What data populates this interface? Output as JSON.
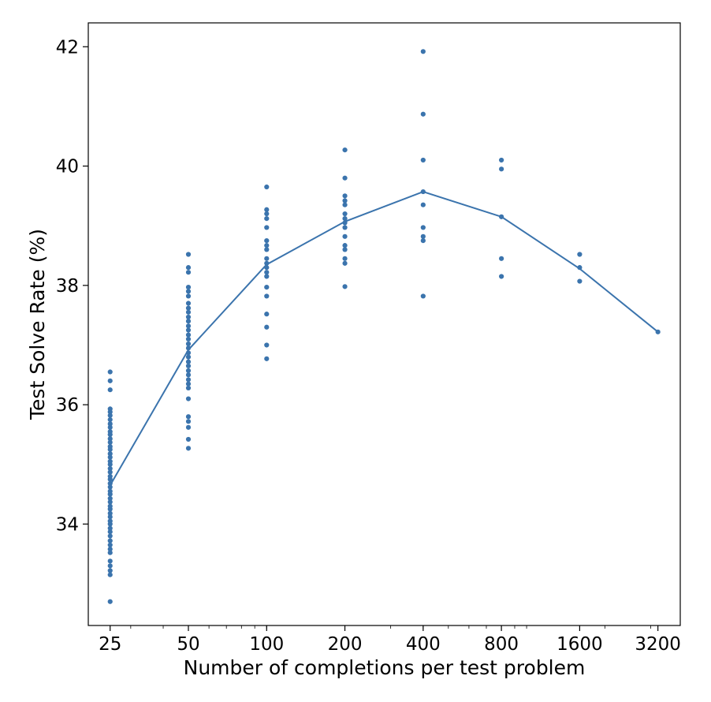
{
  "chart_data": {
    "type": "scatter",
    "title": "",
    "xlabel": "Number of completions per test problem",
    "ylabel": "Test Solve Rate (%)",
    "x_scale": "log2",
    "xlim": [
      20.6,
      3900
    ],
    "ylim": [
      32.3,
      42.4
    ],
    "x_ticks": [
      25,
      50,
      100,
      200,
      400,
      800,
      1600,
      3200
    ],
    "x_tick_labels": [
      "25",
      "50",
      "100",
      "200",
      "400",
      "800",
      "1600",
      "3200"
    ],
    "y_ticks": [
      34,
      36,
      38,
      40,
      42
    ],
    "y_tick_labels": [
      "34",
      "36",
      "38",
      "40",
      "42"
    ],
    "grid": false,
    "legend": "none",
    "color": "#3b74ad",
    "series": [
      {
        "kind": "points",
        "groups": [
          {
            "x": 25,
            "y": [
              32.7,
              33.15,
              33.22,
              33.3,
              33.38,
              33.52,
              33.58,
              33.65,
              33.72,
              33.8,
              33.87,
              33.93,
              34.0,
              34.05,
              34.12,
              34.18,
              34.25,
              34.3,
              34.37,
              34.43,
              34.5,
              34.55,
              34.62,
              34.68,
              34.75,
              34.8,
              34.87,
              34.93,
              35.0,
              35.05,
              35.12,
              35.18,
              35.25,
              35.3,
              35.37,
              35.43,
              35.5,
              35.55,
              35.62,
              35.68,
              35.75,
              35.82,
              35.88,
              35.93,
              36.25,
              36.4,
              36.55
            ]
          },
          {
            "x": 50,
            "y": [
              35.27,
              35.42,
              35.62,
              35.72,
              35.8,
              36.1,
              36.28,
              36.35,
              36.42,
              36.5,
              36.57,
              36.65,
              36.72,
              36.8,
              36.87,
              36.95,
              37.02,
              37.1,
              37.17,
              37.25,
              37.32,
              37.4,
              37.47,
              37.55,
              37.62,
              37.7,
              37.82,
              37.9,
              37.97,
              38.22,
              38.3,
              38.52
            ]
          },
          {
            "x": 100,
            "y": [
              36.77,
              37.0,
              37.3,
              37.52,
              37.82,
              37.97,
              38.15,
              38.22,
              38.3,
              38.37,
              38.45,
              38.6,
              38.67,
              38.75,
              38.97,
              39.12,
              39.2,
              39.27,
              39.65
            ]
          },
          {
            "x": 200,
            "y": [
              37.98,
              38.37,
              38.45,
              38.6,
              38.67,
              38.82,
              38.97,
              39.05,
              39.12,
              39.2,
              39.35,
              39.42,
              39.5,
              39.8,
              40.27
            ]
          },
          {
            "x": 400,
            "y": [
              37.82,
              38.75,
              38.82,
              38.97,
              39.35,
              39.57,
              40.1,
              40.87,
              41.92
            ]
          },
          {
            "x": 800,
            "y": [
              38.15,
              38.45,
              39.15,
              39.95,
              40.1
            ]
          },
          {
            "x": 1600,
            "y": [
              38.07,
              38.3,
              38.52
            ]
          },
          {
            "x": 3200,
            "y": [
              37.22
            ]
          }
        ]
      },
      {
        "kind": "line",
        "x": [
          25,
          50,
          100,
          200,
          400,
          800,
          1600,
          3200
        ],
        "y": [
          34.65,
          36.92,
          38.35,
          39.07,
          39.57,
          39.15,
          38.28,
          37.22
        ]
      }
    ]
  }
}
